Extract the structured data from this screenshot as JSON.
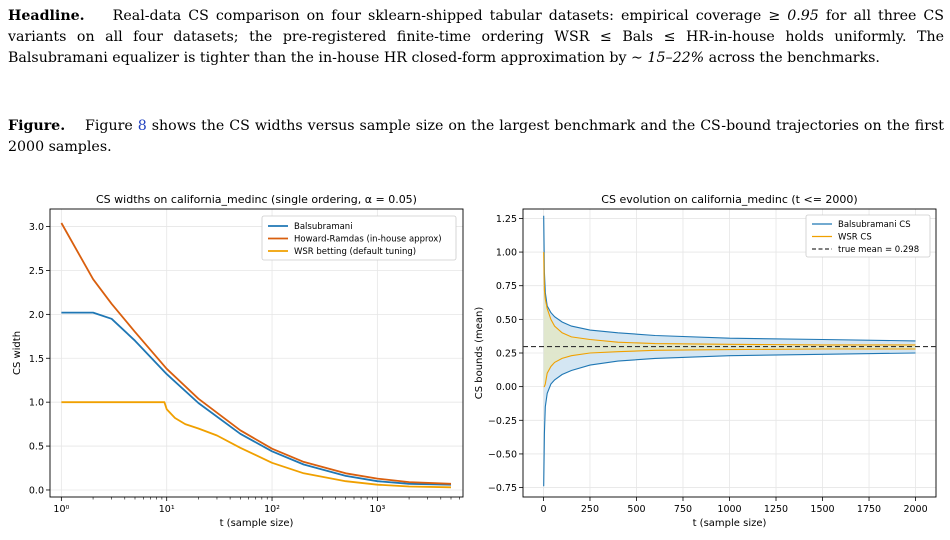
{
  "text": {
    "p1_lead": "Headline.",
    "p1_a": "Real-data CS comparison on four sklearn-shipped tabular datasets: empirical coverage ",
    "p1_m1": "≥ 0.95",
    "p1_b": " for all three CS variants on all four datasets; the pre-registered finite-time ordering WSR ",
    "p1_m2": "≤",
    "p1_c": " Bals ",
    "p1_m3": "≤",
    "p1_d": " HR-in-house holds uniformly. The Balsubramani equalizer is tighter than the in-house HR closed-form approximation by ",
    "p1_m4": "∼ 15–22%",
    "p1_e": " across the benchmarks.",
    "p2_lead": "Figure.",
    "p2_a": "Figure ",
    "p2_ref": "8",
    "p2_b": " shows the CS widths versus sample size on the largest benchmark and the CS-bound trajectories on the first 2000 samples."
  },
  "colors": {
    "balsubramani": "#1f77b4",
    "howard_ramdas": "#d95f0e",
    "wsr": "#f0a000",
    "band": "#cfe3f2",
    "band_wsr": "#e4e7c0",
    "true_mean": "#333333",
    "grid": "#e6e6e6"
  },
  "chart_data": [
    {
      "type": "line",
      "title": "CS widths on california_medinc (single ordering, α = 0.05)",
      "xlabel": "t (sample size)",
      "ylabel": "CS width",
      "xscale": "log",
      "xlim": [
        0.78,
        6500
      ],
      "ylim": [
        -0.08,
        3.2
      ],
      "xticks": [
        {
          "v": 1,
          "label": "10⁰"
        },
        {
          "v": 10,
          "label": "10¹"
        },
        {
          "v": 100,
          "label": "10²"
        },
        {
          "v": 1000,
          "label": "10³"
        }
      ],
      "yticks": [
        0.0,
        0.5,
        1.0,
        1.5,
        2.0,
        2.5,
        3.0
      ],
      "grid": true,
      "legend": "top-right",
      "series": [
        {
          "name": "Balsubramani",
          "color_key": "balsubramani",
          "x": [
            1,
            2,
            3,
            5,
            10,
            20,
            50,
            100,
            200,
            500,
            1000,
            2000,
            5000
          ],
          "y": [
            2.02,
            2.02,
            1.95,
            1.7,
            1.32,
            0.99,
            0.64,
            0.44,
            0.29,
            0.16,
            0.1,
            0.07,
            0.06
          ]
        },
        {
          "name": "Howard-Ramdas (in-house approx)",
          "color_key": "howard_ramdas",
          "x": [
            1,
            2,
            3,
            5,
            10,
            20,
            50,
            100,
            200,
            500,
            1000,
            2000,
            5000
          ],
          "y": [
            3.04,
            2.4,
            2.12,
            1.8,
            1.38,
            1.04,
            0.68,
            0.47,
            0.32,
            0.19,
            0.13,
            0.09,
            0.07
          ]
        },
        {
          "name": "WSR betting (default tuning)",
          "color_key": "wsr",
          "x": [
            1,
            5,
            9.5,
            10,
            12,
            15,
            20,
            30,
            50,
            100,
            200,
            500,
            1000,
            2000,
            5000
          ],
          "y": [
            1.0,
            1.0,
            1.0,
            0.92,
            0.82,
            0.75,
            0.7,
            0.62,
            0.48,
            0.31,
            0.19,
            0.1,
            0.06,
            0.04,
            0.03
          ]
        }
      ]
    },
    {
      "type": "line",
      "title": "CS evolution on california_medinc (t <= 2000)",
      "xlabel": "t (sample size)",
      "ylabel": "CS bounds (mean)",
      "xlim": [
        -110,
        2110
      ],
      "ylim": [
        -0.82,
        1.32
      ],
      "xticks": [
        0,
        250,
        500,
        750,
        1000,
        1250,
        1500,
        1750,
        2000
      ],
      "yticks": [
        -0.75,
        -0.5,
        -0.25,
        0.0,
        0.25,
        0.5,
        0.75,
        1.0,
        1.25
      ],
      "grid": true,
      "legend": "top-right",
      "true_mean": 0.298,
      "series": [
        {
          "name": "Balsubramani CS",
          "color_key": "balsubramani",
          "x": [
            1,
            5,
            10,
            20,
            40,
            60,
            100,
            150,
            250,
            400,
            600,
            1000,
            1500,
            2000
          ],
          "upper": [
            1.27,
            0.85,
            0.7,
            0.6,
            0.55,
            0.52,
            0.48,
            0.45,
            0.42,
            0.4,
            0.38,
            0.36,
            0.35,
            0.34
          ],
          "lower": [
            -0.74,
            -0.35,
            -0.15,
            -0.05,
            0.02,
            0.05,
            0.09,
            0.12,
            0.16,
            0.19,
            0.21,
            0.23,
            0.24,
            0.25
          ]
        },
        {
          "name": "WSR CS",
          "color_key": "wsr",
          "x": [
            1,
            5,
            10,
            20,
            40,
            60,
            100,
            150,
            250,
            400,
            600,
            1000,
            1500,
            2000
          ],
          "upper": [
            1.0,
            0.72,
            0.65,
            0.58,
            0.5,
            0.45,
            0.4,
            0.37,
            0.35,
            0.33,
            0.32,
            0.315,
            0.31,
            0.31
          ],
          "lower": [
            0.0,
            0.0,
            0.02,
            0.1,
            0.15,
            0.18,
            0.21,
            0.23,
            0.25,
            0.26,
            0.27,
            0.275,
            0.28,
            0.28
          ]
        }
      ],
      "true_mean_label": "true mean = 0.298"
    }
  ]
}
